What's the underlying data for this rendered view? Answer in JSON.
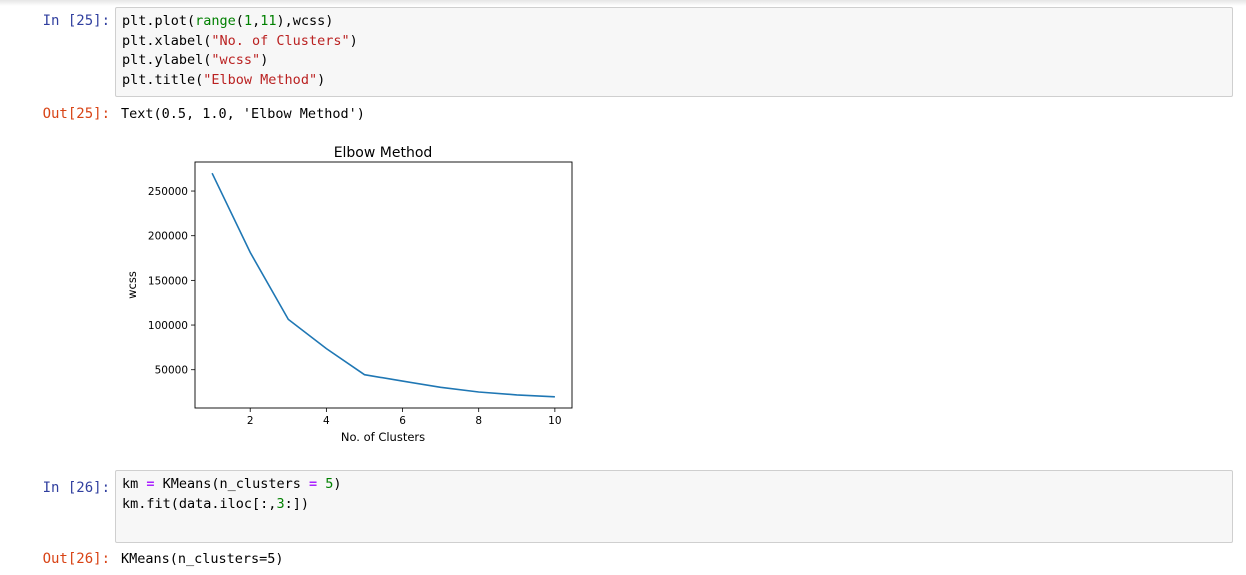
{
  "cell25": {
    "in_prompt": "In [25]:",
    "code_lines": [
      [
        {
          "t": "plt.plot(",
          "c": ""
        },
        {
          "t": "range",
          "c": "bi"
        },
        {
          "t": "(",
          "c": ""
        },
        {
          "t": "1",
          "c": "num"
        },
        {
          "t": ",",
          "c": ""
        },
        {
          "t": "11",
          "c": "num"
        },
        {
          "t": "),wcss)",
          "c": ""
        }
      ],
      [
        {
          "t": "plt.xlabel(",
          "c": ""
        },
        {
          "t": "\"No. of Clusters\"",
          "c": "str"
        },
        {
          "t": ")",
          "c": ""
        }
      ],
      [
        {
          "t": "plt.ylabel(",
          "c": ""
        },
        {
          "t": "\"wcss\"",
          "c": "str"
        },
        {
          "t": ")",
          "c": ""
        }
      ],
      [
        {
          "t": "plt.title(",
          "c": ""
        },
        {
          "t": "\"Elbow Method\"",
          "c": "str"
        },
        {
          "t": ")",
          "c": ""
        }
      ]
    ],
    "out_prompt": "Out[25]:",
    "out_text": "Text(0.5, 1.0, 'Elbow Method')"
  },
  "chart_data": {
    "type": "line",
    "title": "Elbow Method",
    "xlabel": "No. of Clusters",
    "ylabel": "wcss",
    "x": [
      1,
      2,
      3,
      4,
      5,
      6,
      7,
      8,
      9,
      10
    ],
    "series": [
      {
        "values": [
          269982,
          181363,
          106348,
          73679,
          44448,
          37265,
          30259,
          25095,
          21830,
          19660
        ],
        "color": "#1f77b4"
      }
    ],
    "xlim": [
      0.55,
      10.45
    ],
    "ylim": [
      7144,
      282498
    ],
    "xticks": [
      2,
      4,
      6,
      8,
      10
    ],
    "yticks": [
      50000,
      100000,
      150000,
      200000,
      250000
    ],
    "grid": false
  },
  "cell26": {
    "in_prompt": "In [26]:",
    "code_lines": [
      [
        {
          "t": "km ",
          "c": ""
        },
        {
          "t": "=",
          "c": "op"
        },
        {
          "t": " KMeans(n_clusters ",
          "c": ""
        },
        {
          "t": "=",
          "c": "op"
        },
        {
          "t": " ",
          "c": ""
        },
        {
          "t": "5",
          "c": "num"
        },
        {
          "t": ")",
          "c": ""
        }
      ],
      [
        {
          "t": "km.fit(data.iloc[:,",
          "c": ""
        },
        {
          "t": "3",
          "c": "num"
        },
        {
          "t": ":])",
          "c": ""
        }
      ]
    ],
    "out_prompt": "Out[26]:",
    "out_text": "KMeans(n_clusters=5)"
  }
}
